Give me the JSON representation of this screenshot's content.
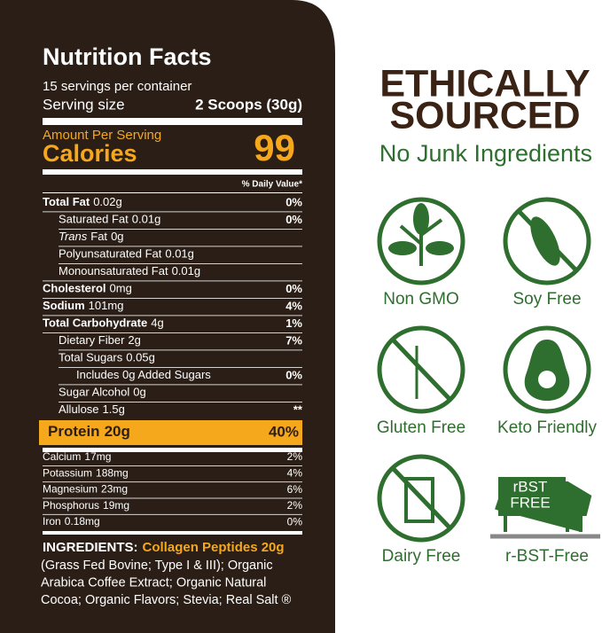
{
  "label": {
    "title": "Nutrition Facts",
    "servings": "15 servings per container",
    "serving_size": {
      "label": "Serving size",
      "value": "2 Scoops (30g)"
    },
    "amount_per_serving": "Amount Per Serving",
    "calories": {
      "label": "Calories",
      "value": "99"
    },
    "daily_value_header": "% Daily Value*",
    "rows": [
      {
        "name": "Total Fat",
        "amount": "0.02g",
        "dv": "0%",
        "bold": true,
        "indent": 0
      },
      {
        "name": "Saturated Fat",
        "amount": "0.01g",
        "dv": "0%",
        "bold": false,
        "indent": 1
      },
      {
        "name_italic": "Trans",
        "name": "Fat",
        "amount": "0g",
        "bold": false,
        "indent": 1
      },
      {
        "name": "Polyunsaturated Fat",
        "amount": "0.01g",
        "bold": false,
        "indent": 1
      },
      {
        "name": "Monounsaturated Fat",
        "amount": "0.01g",
        "bold": false,
        "indent": 1
      },
      {
        "name": "Cholesterol",
        "amount": "0mg",
        "dv": "0%",
        "bold": true,
        "indent": 0
      },
      {
        "name": "Sodium",
        "amount": "101mg",
        "dv": "4%",
        "bold": true,
        "indent": 0
      },
      {
        "name": "Total Carbohydrate",
        "amount": "4g",
        "dv": "1%",
        "bold": true,
        "indent": 0
      },
      {
        "name": "Dietary Fiber",
        "amount": "2g",
        "dv": "7%",
        "bold": false,
        "indent": 1
      },
      {
        "name": "Total Sugars",
        "amount": "0.05g",
        "bold": false,
        "indent": 1
      },
      {
        "name": "Includes 0g Added Sugars",
        "dv": "0%",
        "bold": false,
        "indent": 2
      },
      {
        "name": "Sugar Alcohol",
        "amount": "0g",
        "bold": false,
        "indent": 1
      },
      {
        "name": "Allulose",
        "amount": "1.5g",
        "dv": "**",
        "bold": false,
        "indent": 1
      }
    ],
    "protein": {
      "name": "Protein",
      "amount": "20g",
      "dv": "40%"
    },
    "minerals": [
      {
        "name": "Calcium",
        "amount": "17mg",
        "dv": "2%"
      },
      {
        "name": "Potassium",
        "amount": "188mg",
        "dv": "4%"
      },
      {
        "name": "Magnesium",
        "amount": "23mg",
        "dv": "6%"
      },
      {
        "name": "Phosphorus",
        "amount": "19mg",
        "dv": "2%"
      },
      {
        "name": "Iron",
        "amount": "0.18mg",
        "dv": "0%"
      }
    ],
    "ingredients": {
      "heading": "INGREDIENTS:",
      "highlight": "Collagen Peptides 20g",
      "lines": [
        "(Grass Fed Bovine; Type I & III); Organic",
        "Arabica Coffee Extract; Organic Natural",
        "Cocoa; Organic Flavors; Stevia; Real Salt ®"
      ]
    }
  },
  "claims": {
    "heading": [
      "ETHICALLY",
      "SOURCED"
    ],
    "subheading": "No Junk Ingredients",
    "badges": [
      "Non GMO",
      "Soy Free",
      "Gluten Free",
      "Keto Friendly",
      "Dairy Free",
      "r-BST-Free"
    ],
    "rbst_icon_text": [
      "rBST",
      "FREE"
    ]
  }
}
